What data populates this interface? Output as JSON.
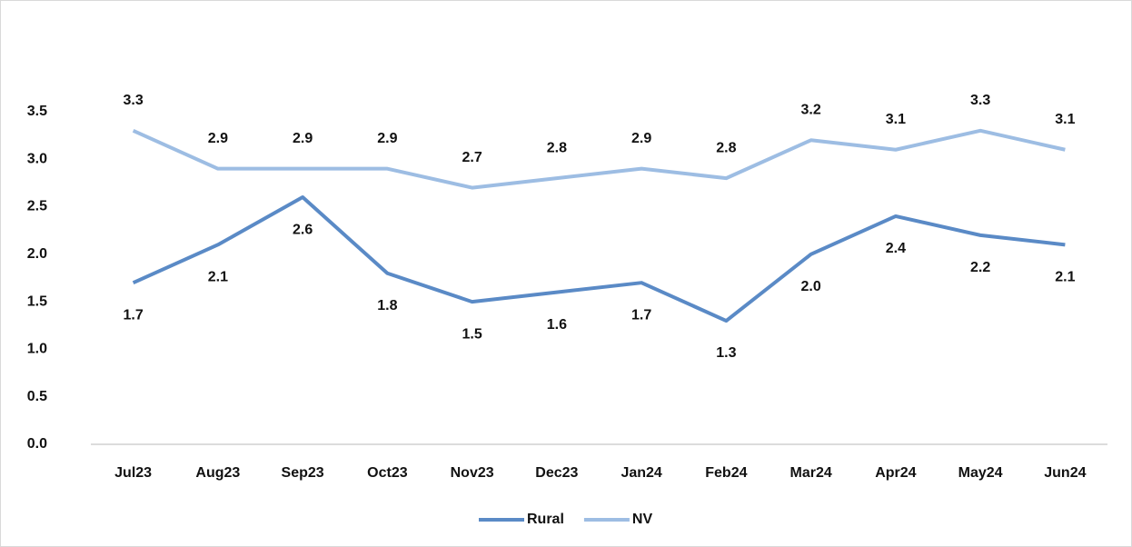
{
  "chart_data": {
    "type": "line",
    "categories": [
      "Jul23",
      "Aug23",
      "Sep23",
      "Oct23",
      "Nov23",
      "Dec23",
      "Jan24",
      "Feb24",
      "Mar24",
      "Apr24",
      "May24",
      "Jun24"
    ],
    "series": [
      {
        "name": "Rural",
        "color": "#5a8ac6",
        "values": [
          1.7,
          2.1,
          2.6,
          1.8,
          1.5,
          1.6,
          1.7,
          1.3,
          2.0,
          2.4,
          2.2,
          2.1
        ],
        "value_labels": [
          "1.7",
          "2.1",
          "2.6",
          "1.8",
          "1.5",
          "1.6",
          "1.7",
          "1.3",
          "2.0",
          "2.4",
          "2.2",
          "2.1"
        ]
      },
      {
        "name": "NV",
        "color": "#9dbde3",
        "values": [
          3.3,
          2.9,
          2.9,
          2.9,
          2.7,
          2.8,
          2.9,
          2.8,
          3.2,
          3.1,
          3.3,
          3.1
        ]
      }
    ],
    "ylim": [
      0,
      4
    ],
    "yticks": [
      {
        "value": 0,
        "label": "0.0"
      },
      0.5,
      {
        "value": 1,
        "label": "1.0"
      },
      1.5,
      {
        "value": 2,
        "label": "2.0"
      },
      2.5,
      {
        "value": 3,
        "label": "3.0"
      },
      3.5
    ],
    "grid": false,
    "legend": "bottom"
  }
}
